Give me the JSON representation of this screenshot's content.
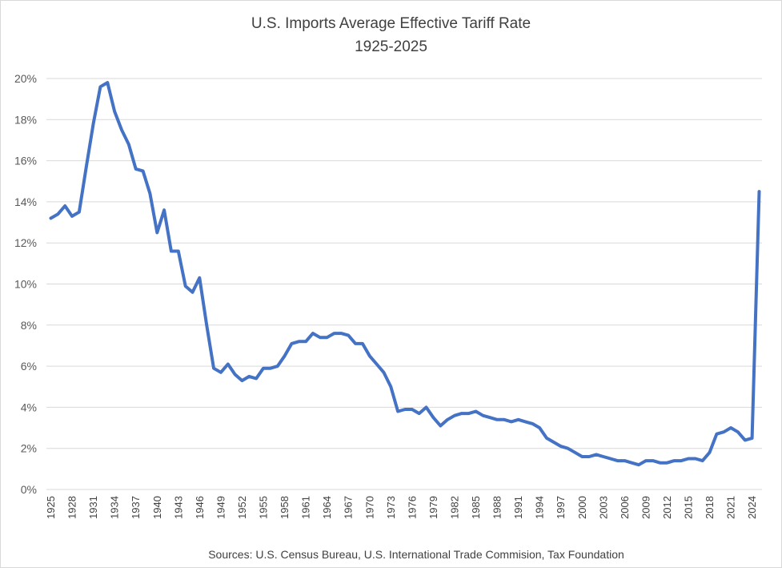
{
  "chart_data": {
    "type": "line",
    "title": "U.S. Imports Average Effective Tariff Rate",
    "subtitle": "1925-2025",
    "xlabel": "",
    "ylabel": "",
    "ylim": [
      0,
      20
    ],
    "y_tick_labels": [
      "0%",
      "2%",
      "4%",
      "6%",
      "8%",
      "10%",
      "12%",
      "14%",
      "16%",
      "18%",
      "20%"
    ],
    "y_tick_values": [
      0,
      2,
      4,
      6,
      8,
      10,
      12,
      14,
      16,
      18,
      20
    ],
    "x_tick_labels": [
      "1925",
      "1928",
      "1931",
      "1934",
      "1937",
      "1940",
      "1943",
      "1946",
      "1949",
      "1952",
      "1955",
      "1958",
      "1961",
      "1964",
      "1967",
      "1970",
      "1973",
      "1976",
      "1979",
      "1982",
      "1985",
      "1988",
      "1991",
      "1994",
      "1997",
      "2000",
      "2003",
      "2006",
      "2009",
      "2012",
      "2015",
      "2018",
      "2021",
      "2024"
    ],
    "grid": true,
    "legend": "none",
    "line_color": "#4472c4",
    "series": [
      {
        "x": [
          1925,
          1926,
          1927,
          1928,
          1929,
          1930,
          1931,
          1932,
          1933,
          1934,
          1935,
          1936,
          1937,
          1938,
          1939,
          1940,
          1941,
          1942,
          1943,
          1944,
          1945,
          1946,
          1947,
          1948,
          1949,
          1950,
          1951,
          1952,
          1953,
          1954,
          1955,
          1956,
          1957,
          1958,
          1959,
          1960,
          1961,
          1962,
          1963,
          1964,
          1965,
          1966,
          1967,
          1968,
          1969,
          1970,
          1971,
          1972,
          1973,
          1974,
          1975,
          1976,
          1977,
          1978,
          1979,
          1980,
          1981,
          1982,
          1983,
          1984,
          1985,
          1986,
          1987,
          1988,
          1989,
          1990,
          1991,
          1992,
          1993,
          1994,
          1995,
          1996,
          1997,
          1998,
          1999,
          2000,
          2001,
          2002,
          2003,
          2004,
          2005,
          2006,
          2007,
          2008,
          2009,
          2010,
          2011,
          2012,
          2013,
          2014,
          2015,
          2016,
          2017,
          2018,
          2019,
          2020,
          2021,
          2022,
          2023,
          2024,
          2025
        ],
        "values": [
          13.2,
          13.4,
          13.8,
          13.3,
          13.5,
          15.7,
          17.8,
          19.6,
          19.8,
          18.4,
          17.5,
          16.8,
          15.6,
          15.5,
          14.4,
          12.5,
          13.6,
          11.6,
          11.6,
          9.9,
          9.6,
          10.3,
          8.0,
          5.9,
          5.7,
          6.1,
          5.6,
          5.3,
          5.5,
          5.4,
          5.9,
          5.9,
          6.0,
          6.5,
          7.1,
          7.2,
          7.2,
          7.6,
          7.4,
          7.4,
          7.6,
          7.6,
          7.5,
          7.1,
          7.1,
          6.5,
          6.1,
          5.7,
          5.0,
          3.8,
          3.9,
          3.9,
          3.7,
          4.0,
          3.5,
          3.1,
          3.4,
          3.6,
          3.7,
          3.7,
          3.8,
          3.6,
          3.5,
          3.4,
          3.4,
          3.3,
          3.4,
          3.3,
          3.2,
          3.0,
          2.5,
          2.3,
          2.1,
          2.0,
          1.8,
          1.6,
          1.6,
          1.7,
          1.6,
          1.5,
          1.4,
          1.4,
          1.3,
          1.2,
          1.4,
          1.4,
          1.3,
          1.3,
          1.4,
          1.4,
          1.5,
          1.5,
          1.4,
          1.8,
          2.7,
          2.8,
          3.0,
          2.8,
          2.4,
          2.5,
          14.5
        ]
      }
    ]
  },
  "footer": {
    "source": "Sources: U.S. Census Bureau, U.S. International Trade Commision, Tax Foundation"
  }
}
